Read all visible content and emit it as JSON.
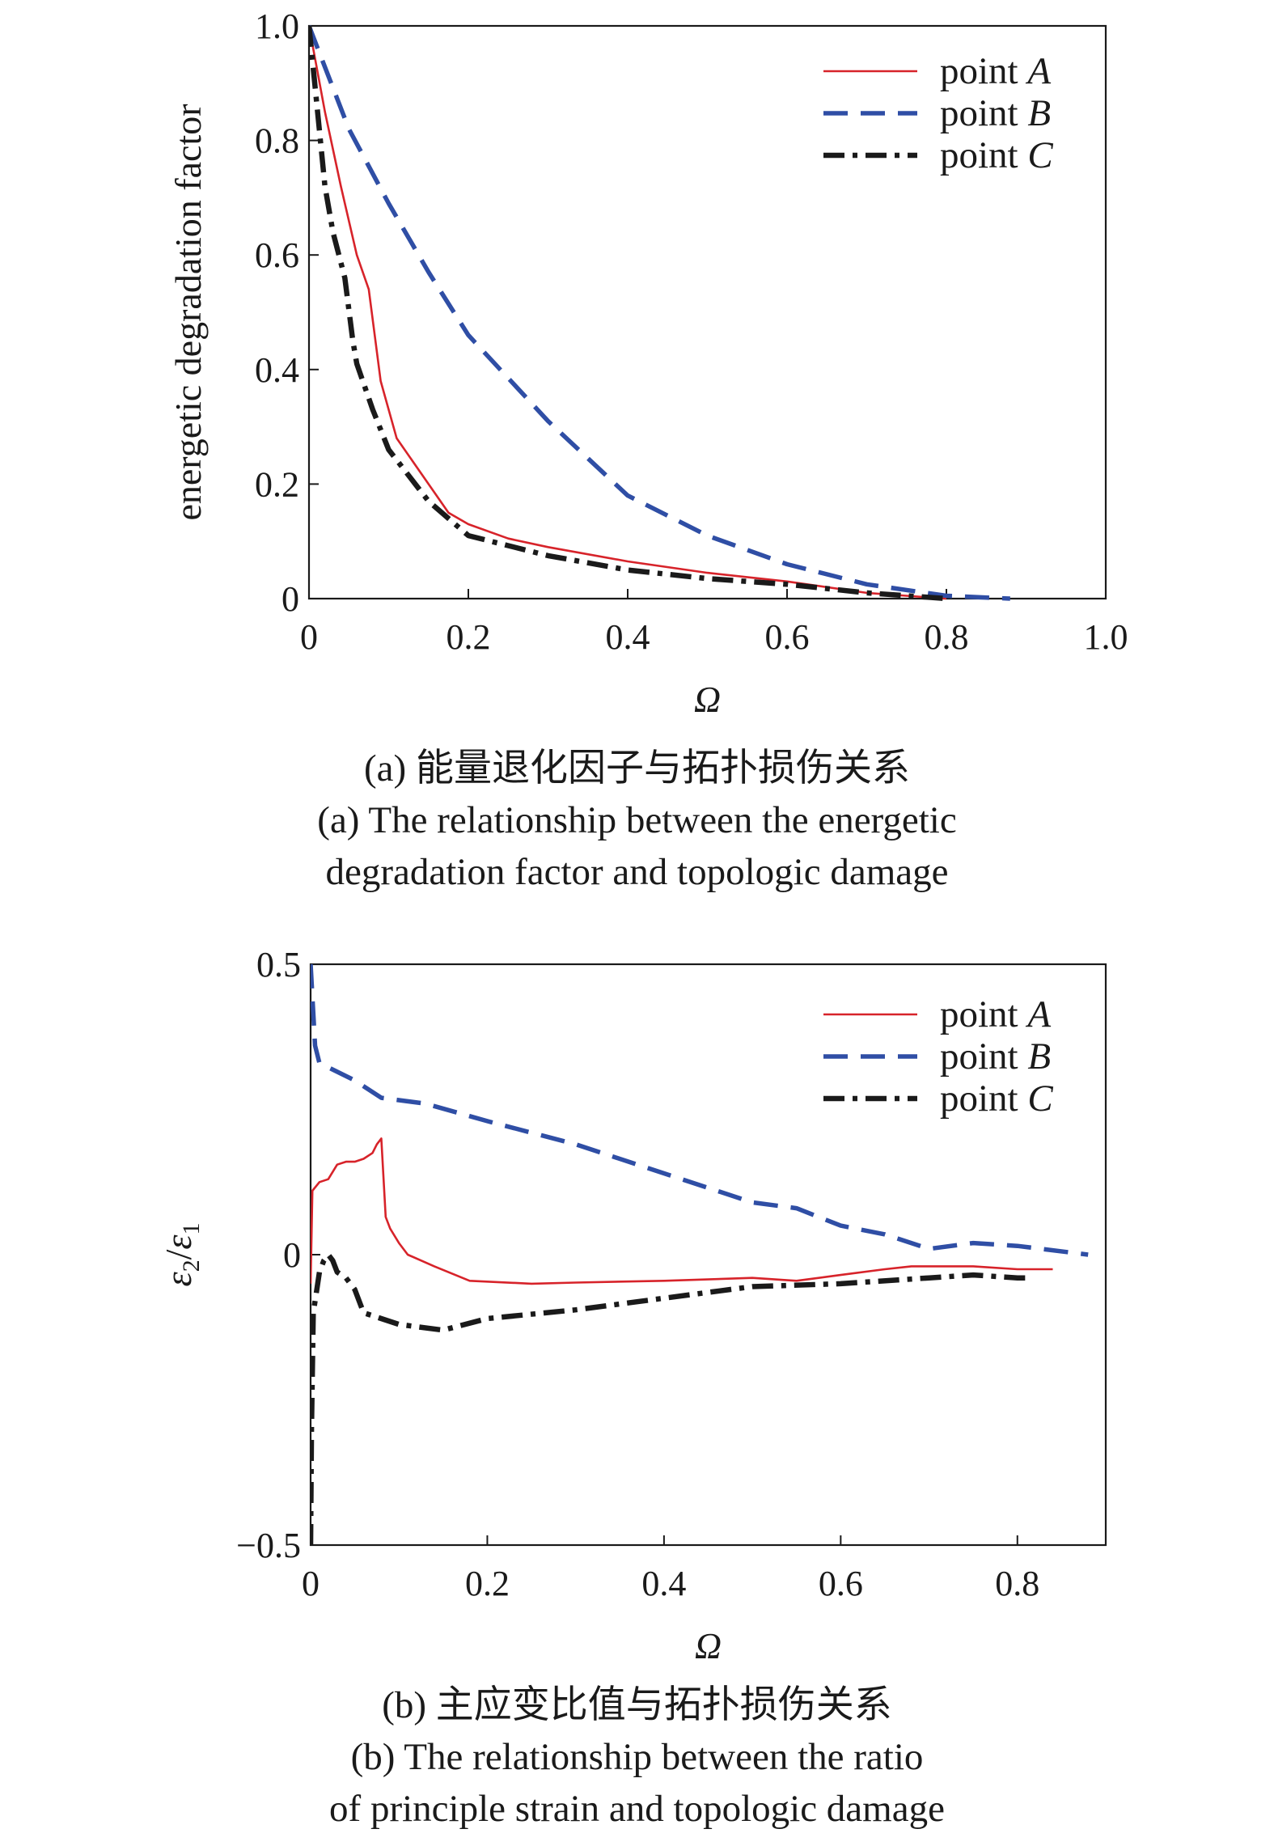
{
  "colors": {
    "A": "#d7232a",
    "B": "#2f4ea5",
    "C": "#1a1a1a"
  },
  "chart_data": [
    {
      "type": "line",
      "xlabel": "Ω",
      "ylabel": "energetic degradation factor",
      "xlim": [
        0,
        1.0
      ],
      "ylim": [
        0,
        1.0
      ],
      "xticks": [
        "0",
        "0.2",
        "0.4",
        "0.6",
        "0.8",
        "1.0"
      ],
      "yticks": [
        "0",
        "0.2",
        "0.4",
        "0.6",
        "0.8",
        "1.0"
      ],
      "legend_position": "top-right",
      "caption_cn": "(a) 能量退化因子与拓扑损伤关系",
      "caption_en": [
        "(a) The relationship between the energetic",
        "degradation factor and topologic damage"
      ],
      "series": [
        {
          "name": "point A",
          "label_prefix": "point ",
          "label_var": "A",
          "style": "solid",
          "color": "#d7232a",
          "x": [
            0,
            0.02,
            0.04,
            0.06,
            0.075,
            0.09,
            0.11,
            0.15,
            0.175,
            0.2,
            0.25,
            0.3,
            0.4,
            0.5,
            0.6,
            0.7,
            0.75,
            0.8
          ],
          "y": [
            1.0,
            0.85,
            0.72,
            0.6,
            0.54,
            0.38,
            0.28,
            0.2,
            0.15,
            0.13,
            0.105,
            0.09,
            0.065,
            0.045,
            0.03,
            0.01,
            0.005,
            0.0
          ]
        },
        {
          "name": "point B",
          "label_prefix": "point ",
          "label_var": "B",
          "style": "dashed",
          "color": "#2f4ea5",
          "x": [
            0,
            0.05,
            0.1,
            0.15,
            0.2,
            0.3,
            0.4,
            0.5,
            0.6,
            0.7,
            0.8,
            0.88
          ],
          "y": [
            1.0,
            0.82,
            0.69,
            0.57,
            0.46,
            0.31,
            0.18,
            0.11,
            0.06,
            0.025,
            0.005,
            0.0
          ]
        },
        {
          "name": "point C",
          "label_prefix": "point ",
          "label_var": "C",
          "style": "dashdot",
          "color": "#1a1a1a",
          "x": [
            0,
            0.01,
            0.02,
            0.03,
            0.045,
            0.055,
            0.06,
            0.08,
            0.1,
            0.15,
            0.2,
            0.3,
            0.4,
            0.5,
            0.6,
            0.7,
            0.8
          ],
          "y": [
            1.0,
            0.86,
            0.72,
            0.64,
            0.56,
            0.45,
            0.41,
            0.33,
            0.26,
            0.17,
            0.11,
            0.075,
            0.05,
            0.035,
            0.025,
            0.01,
            0.0
          ]
        }
      ]
    },
    {
      "type": "line",
      "xlabel": "Ω",
      "ylabel": "ε2/ε1",
      "xlim": [
        0,
        0.9
      ],
      "ylim": [
        -0.5,
        0.5
      ],
      "xticks": [
        "0",
        "0.2",
        "0.4",
        "0.6",
        "0.8"
      ],
      "yticks": [
        "−0.5",
        "0",
        "0.5"
      ],
      "legend_position": "top-right",
      "caption_cn": "(b) 主应变比值与拓扑损伤关系",
      "caption_en": [
        "(b) The relationship between the ratio",
        "of principle strain and topologic damage"
      ],
      "series": [
        {
          "name": "point A",
          "label_prefix": "point ",
          "label_var": "A",
          "style": "solid",
          "color": "#d7232a",
          "x": [
            0,
            0.002,
            0.01,
            0.02,
            0.03,
            0.04,
            0.05,
            0.06,
            0.07,
            0.075,
            0.08,
            0.085,
            0.09,
            0.1,
            0.11,
            0.14,
            0.18,
            0.25,
            0.3,
            0.4,
            0.5,
            0.55,
            0.6,
            0.65,
            0.68,
            0.7,
            0.75,
            0.8,
            0.83,
            0.84
          ],
          "y": [
            -0.05,
            0.11,
            0.125,
            0.13,
            0.155,
            0.16,
            0.16,
            0.165,
            0.175,
            0.19,
            0.2,
            0.065,
            0.045,
            0.02,
            0.0,
            -0.02,
            -0.045,
            -0.05,
            -0.048,
            -0.045,
            -0.04,
            -0.045,
            -0.035,
            -0.025,
            -0.02,
            -0.02,
            -0.02,
            -0.025,
            -0.025,
            -0.025
          ]
        },
        {
          "name": "point B",
          "label_prefix": "point ",
          "label_var": "B",
          "style": "dashed",
          "color": "#2f4ea5",
          "x": [
            0,
            0.005,
            0.01,
            0.05,
            0.08,
            0.13,
            0.2,
            0.3,
            0.4,
            0.5,
            0.55,
            0.6,
            0.65,
            0.7,
            0.75,
            0.8,
            0.88
          ],
          "y": [
            0.5,
            0.36,
            0.33,
            0.3,
            0.27,
            0.26,
            0.23,
            0.19,
            0.14,
            0.09,
            0.08,
            0.05,
            0.035,
            0.01,
            0.02,
            0.015,
            0.0
          ]
        },
        {
          "name": "point C",
          "label_prefix": "point ",
          "label_var": "C",
          "style": "dashdot",
          "color": "#1a1a1a",
          "x": [
            0,
            0.001,
            0.003,
            0.006,
            0.01,
            0.015,
            0.02,
            0.025,
            0.03,
            0.04,
            0.05,
            0.06,
            0.1,
            0.15,
            0.2,
            0.3,
            0.4,
            0.5,
            0.6,
            0.7,
            0.75,
            0.8,
            0.81
          ],
          "y": [
            -0.5,
            -0.3,
            -0.1,
            -0.07,
            -0.03,
            -0.01,
            0.0,
            -0.01,
            -0.03,
            -0.04,
            -0.06,
            -0.1,
            -0.12,
            -0.13,
            -0.11,
            -0.095,
            -0.075,
            -0.055,
            -0.05,
            -0.04,
            -0.035,
            -0.04,
            -0.04
          ]
        }
      ]
    }
  ]
}
